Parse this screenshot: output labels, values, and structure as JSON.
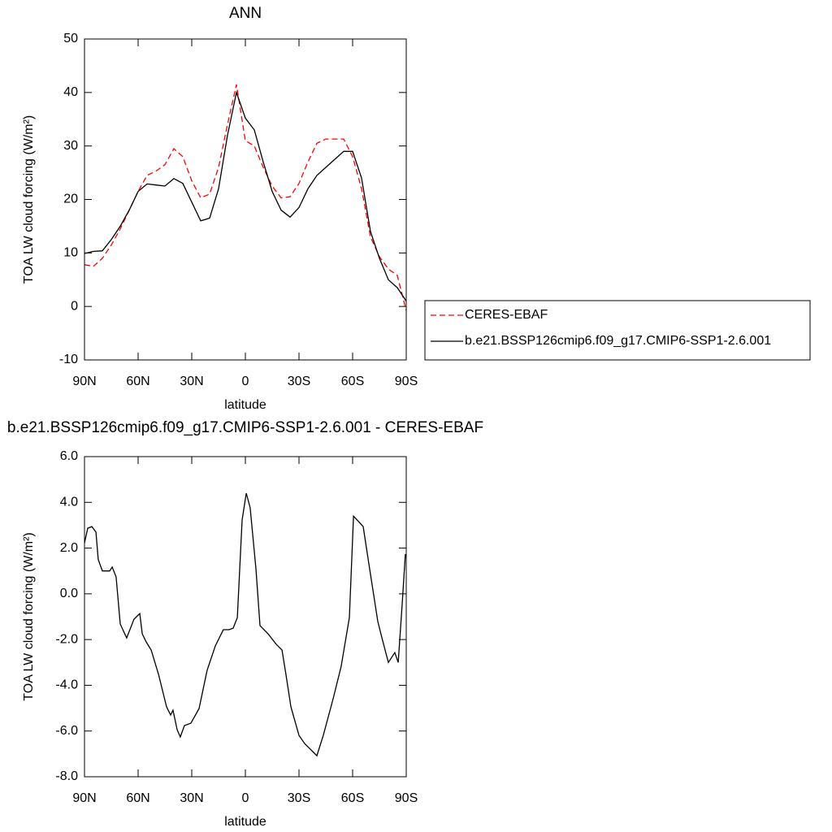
{
  "chart_data": [
    {
      "type": "line",
      "title": "ANN",
      "xlabel": "latitude",
      "ylabel": "TOA LW cloud forcing (W/m²)",
      "x": [
        90,
        85,
        80,
        75,
        70,
        65,
        60,
        55,
        50,
        45,
        40,
        35,
        30,
        25,
        20,
        15,
        10,
        5,
        0,
        -5,
        -10,
        -15,
        -20,
        -25,
        -30,
        -35,
        -40,
        -45,
        -50,
        -55,
        -60,
        -65,
        -70,
        -75,
        -80,
        -85,
        -90
      ],
      "series": [
        {
          "name": "CERES-EBAF",
          "color": "#ff0000",
          "dashed": true,
          "values": [
            7.8,
            7.5,
            9,
            11.5,
            14.5,
            18,
            21.5,
            24.5,
            25.3,
            26.5,
            29.5,
            28,
            23.5,
            20.3,
            21,
            26,
            34,
            41.5,
            31,
            30,
            26,
            22.5,
            20.3,
            20.5,
            23,
            27,
            30.5,
            31.3,
            31.3,
            31.3,
            28,
            22,
            13,
            9.3,
            7,
            5.8,
            -0.8
          ]
        },
        {
          "name": "b.e21.BSSP126cmip6.f09_g17.CMIP6-SSP1-2.6.001",
          "color": "#000000",
          "dashed": false,
          "values": [
            9.9,
            10.3,
            10.4,
            12.5,
            15,
            18,
            21.5,
            22.9,
            22.7,
            22.5,
            23.9,
            23,
            19.5,
            16,
            16.5,
            22,
            32,
            40,
            35.2,
            33,
            27,
            21.5,
            18,
            16.7,
            18.5,
            22,
            24.5,
            26,
            27.5,
            29,
            29,
            24,
            14,
            9,
            5,
            3.5,
            1
          ]
        }
      ],
      "xlim": [
        90,
        -90
      ],
      "xticks": [
        {
          "value": 90,
          "label": "90N"
        },
        {
          "value": 60,
          "label": "60N"
        },
        {
          "value": 30,
          "label": "30N"
        },
        0,
        {
          "value": -30,
          "label": "30S"
        },
        {
          "value": -60,
          "label": "60S"
        },
        {
          "value": -90,
          "label": "90S"
        }
      ],
      "ylim": [
        -10,
        50
      ],
      "yticks": [
        -10,
        0,
        10,
        20,
        30,
        40,
        50
      ]
    },
    {
      "type": "line",
      "title": "b.e21.BSSP126cmip6.f09_g17.CMIP6-SSP1-2.6.001 - CERES-EBAF",
      "xlabel": "latitude",
      "ylabel": "TOA LW cloud forcing (W/m²)",
      "x": [
        90,
        88.2,
        85.9,
        83.6,
        82.3,
        80,
        75.9,
        74.5,
        72.3,
        70,
        66.4,
        62.3,
        59.1,
        57.7,
        55.5,
        52.7,
        48.6,
        44.1,
        41.8,
        40.5,
        38.2,
        36.4,
        34.1,
        30.5,
        25.9,
        21.4,
        16.8,
        12.3,
        9.1,
        6.8,
        4.5,
        1.8,
        -0.5,
        -2.7,
        -5.9,
        -8.2,
        -12.7,
        -17.3,
        -20.5,
        -22.7,
        -25.5,
        -30,
        -33.2,
        -37.7,
        -40,
        -43.6,
        -49.1,
        -53.6,
        -58.2,
        -60.5,
        -65.9,
        -69.5,
        -74.1,
        -76.4,
        -80,
        -83.6,
        -85.5,
        -87.7,
        -89.5
      ],
      "series": [
        {
          "name": "b.e21.BSSP126cmip6.f09_g17.CMIP6-SSP1-2.6.001 - CERES-EBAF",
          "color": "#000000",
          "dashed": false,
          "values": [
            2.23,
            2.87,
            2.94,
            2.7,
            1.5,
            1.0,
            1.0,
            1.17,
            0.74,
            -1.32,
            -1.93,
            -1.11,
            -0.86,
            -1.75,
            -2.1,
            -2.46,
            -3.52,
            -4.94,
            -5.3,
            -5.09,
            -5.94,
            -6.26,
            -5.76,
            -5.66,
            -5.02,
            -3.35,
            -2.28,
            -1.57,
            -1.57,
            -1.5,
            -1.04,
            3.23,
            4.4,
            3.76,
            1.1,
            -1.39,
            -1.75,
            -2.21,
            -2.46,
            -3.52,
            -4.95,
            -6.19,
            -6.55,
            -6.9,
            -7.08,
            -6.19,
            -4.59,
            -3.17,
            -1.04,
            3.4,
            2.94,
            1.1,
            -1.21,
            -1.93,
            -3.0,
            -2.57,
            -3.0,
            -0.5,
            1.74
          ]
        }
      ],
      "xlim": [
        90,
        -90
      ],
      "xticks": [
        {
          "value": 90,
          "label": "90N"
        },
        {
          "value": 60,
          "label": "60N"
        },
        {
          "value": 30,
          "label": "30N"
        },
        0,
        {
          "value": -30,
          "label": "30S"
        },
        {
          "value": -60,
          "label": "60S"
        },
        {
          "value": -90,
          "label": "90S"
        }
      ],
      "ylim": [
        -8,
        6
      ],
      "yticks": [
        {
          "value": -8,
          "label": "-8.0"
        },
        {
          "value": -6,
          "label": "-6.0"
        },
        {
          "value": -4,
          "label": "-4.0"
        },
        {
          "value": -2,
          "label": "-2.0"
        },
        {
          "value": 0,
          "label": "0.0"
        },
        {
          "value": 2,
          "label": "2.0"
        },
        {
          "value": 4,
          "label": "4.0"
        },
        {
          "value": 6,
          "label": "6.0"
        }
      ]
    }
  ]
}
